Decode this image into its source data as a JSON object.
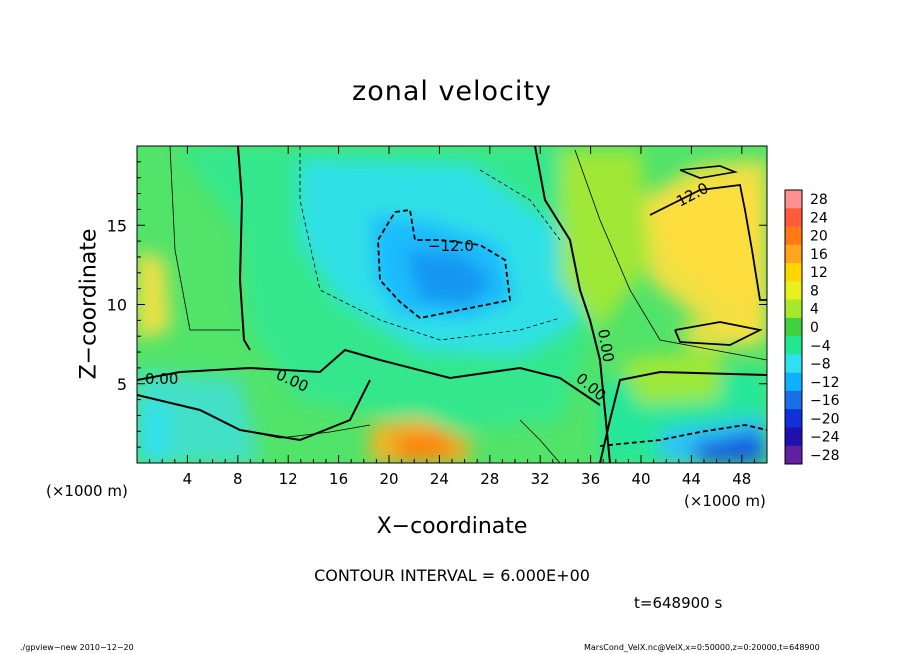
{
  "chart_data": {
    "type": "heatmap",
    "title": "zonal velocity",
    "xlabel": "X−coordinate",
    "ylabel": "Z−coordinate",
    "x_unit_left": "(×1000 m)",
    "x_unit_right": "(×1000 m)",
    "xlim": [
      0,
      50
    ],
    "ylim": [
      0,
      20
    ],
    "xticks": [
      4,
      8,
      12,
      16,
      20,
      24,
      28,
      32,
      36,
      40,
      44,
      48
    ],
    "yticks": [
      5,
      10,
      15
    ],
    "colorbar": {
      "levels": [
        28,
        24,
        20,
        16,
        12,
        8,
        4,
        0,
        -4,
        -8,
        -12,
        -16,
        -20,
        -24,
        -28
      ],
      "labels": [
        "28",
        "24",
        "20",
        "16",
        "12",
        "8",
        "4",
        "0",
        "−4",
        "−8",
        "−12",
        "−16",
        "−20",
        "−24",
        "−28"
      ],
      "colors": [
        "#ff9090",
        "#ff5a3c",
        "#ff7a14",
        "#ffa520",
        "#ffd700",
        "#e8f020",
        "#a8e830",
        "#40d040",
        "#20e890",
        "#30e0f0",
        "#10b0ff",
        "#1870e8",
        "#1030d8",
        "#2010b0",
        "#6020a0"
      ]
    },
    "contour_labels": [
      "−12.0",
      "12.0",
      "0.00",
      "0.00",
      "0.00",
      "0.00"
    ],
    "contour_interval_text": "CONTOUR INTERVAL = 6.000E+00",
    "time_text": "t=648900 s",
    "footer_left": "./gpview−new   2010−12−20",
    "footer_right": "MarsCond_VelX.nc@VelX,x=0:50000,z=0:20000,t=648900",
    "background_color": "#52e36a"
  }
}
